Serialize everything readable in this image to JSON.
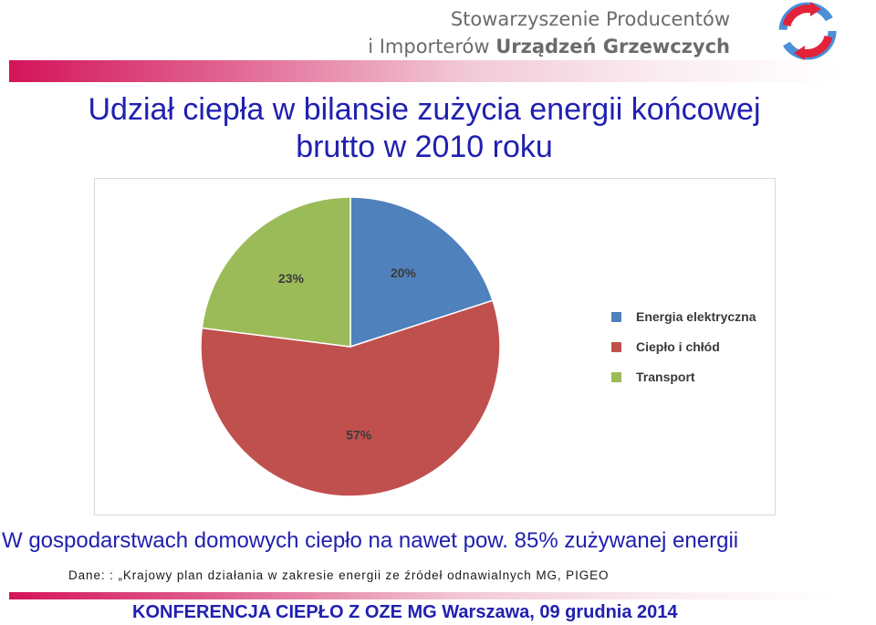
{
  "header": {
    "org_line1": "Stowarzyszenie Producentów",
    "org_line2_prefix": "i Importerów ",
    "org_line2_bold": "Urządzeń Grzewczych",
    "logo_icon": "recycling-arrows-icon"
  },
  "slide": {
    "title_line1": "Udział ciepła w bilansie zużycia energii końcowej",
    "title_line2": "brutto w 2010 roku",
    "subtitle": "W gospodarstwach domowych ciepło na nawet pow. 85% zużywanej energii",
    "source": "Dane: : „Krajowy plan działania w zakresie energii ze źródeł odnawialnych MG, PIGEO",
    "footer": "KONFERENCJA CIEPŁO Z OZE  MG  Warszawa,  09 grudnia 2014"
  },
  "chart_data": {
    "type": "pie",
    "categories": [
      "Energia elektryczna",
      "Ciepło i chłód",
      "Transport"
    ],
    "values": [
      20,
      57,
      23
    ],
    "labels": [
      "20%",
      "57%",
      "23%"
    ],
    "colors": [
      "#4f81bd",
      "#c0504d",
      "#9bbb59"
    ],
    "legend_position": "right"
  },
  "colors": {
    "brand_blue": "#2020b0",
    "brand_pink": "#d4145a"
  }
}
